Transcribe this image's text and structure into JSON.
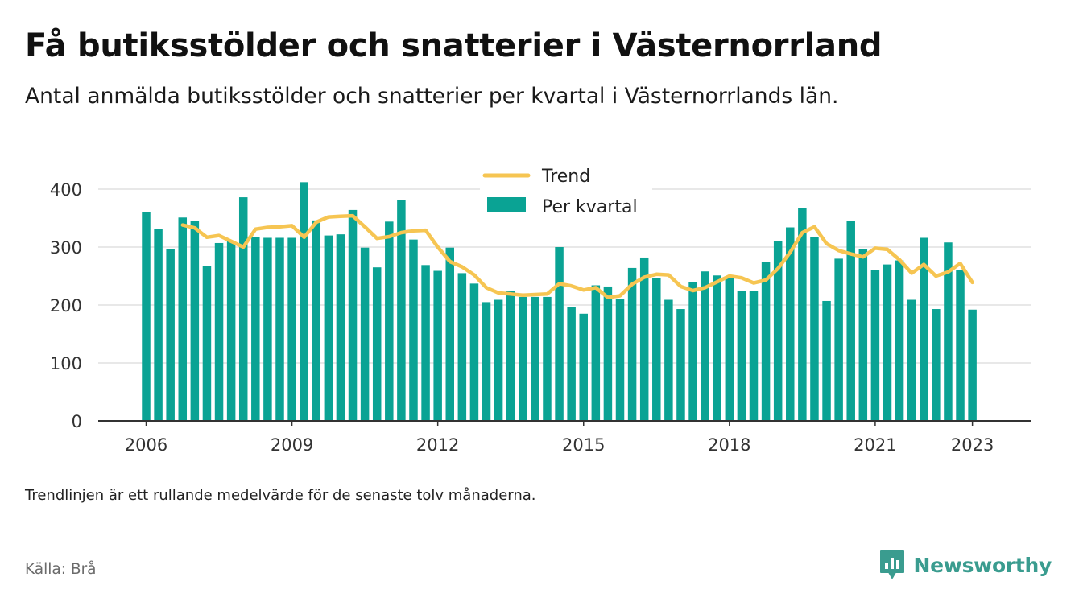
{
  "header": {
    "title": "Få butiksstölder och snatterier i Västernorrland",
    "subtitle": "Antal anmälda butiksstölder och snatterier per kvartal i Västernorrlands län."
  },
  "footer": {
    "note": "Trendlinjen är ett rullande medelvärde för de senaste tolv månaderna.",
    "source": "Källa: Brå",
    "brand": "Newsworthy"
  },
  "colors": {
    "bars": "#0aa394",
    "trend": "#f6c552",
    "grid": "#d9d9d9",
    "axis": "#333333",
    "brand": "#3a9c8f"
  },
  "chart_data": {
    "type": "bar",
    "x_start": "2006 Q1",
    "x_ticks": [
      "2006",
      "2009",
      "2012",
      "2015",
      "2018",
      "2021",
      "2023"
    ],
    "y_ticks": [
      "0",
      "100",
      "200",
      "300",
      "400"
    ],
    "ylim": [
      0,
      400
    ],
    "grid": true,
    "legend_position": "top-center",
    "legend": [
      {
        "key": "trend",
        "label": "Trend"
      },
      {
        "key": "per_kvartal",
        "label": "Per kvartal"
      }
    ],
    "series": [
      {
        "name": "Per kvartal",
        "type": "bar",
        "values": [
          361,
          331,
          296,
          351,
          345,
          268,
          307,
          310,
          386,
          318,
          316,
          316,
          316,
          412,
          346,
          320,
          322,
          364,
          299,
          265,
          344,
          381,
          313,
          269,
          259,
          299,
          255,
          237,
          205,
          209,
          225,
          214,
          214,
          214,
          300,
          196,
          185,
          234,
          232,
          210,
          264,
          282,
          247,
          209,
          193,
          239,
          258,
          251,
          246,
          224,
          224,
          275,
          310,
          334,
          368,
          318,
          207,
          280,
          345,
          296,
          260,
          270,
          277,
          209,
          316,
          193,
          308,
          261,
          192
        ]
      },
      {
        "name": "Trend",
        "type": "line",
        "values": [
          null,
          null,
          null,
          338,
          333,
          317,
          320,
          310,
          300,
          331,
          334,
          335,
          337,
          317,
          343,
          352,
          353,
          354,
          335,
          315,
          318,
          325,
          328,
          329,
          300,
          275,
          266,
          252,
          230,
          221,
          219,
          217,
          218,
          219,
          237,
          233,
          226,
          230,
          213,
          216,
          236,
          248,
          253,
          252,
          232,
          225,
          230,
          240,
          250,
          247,
          238,
          243,
          263,
          291,
          325,
          335,
          306,
          294,
          288,
          283,
          298,
          296,
          278,
          255,
          270,
          250,
          257,
          272,
          239
        ]
      }
    ]
  }
}
